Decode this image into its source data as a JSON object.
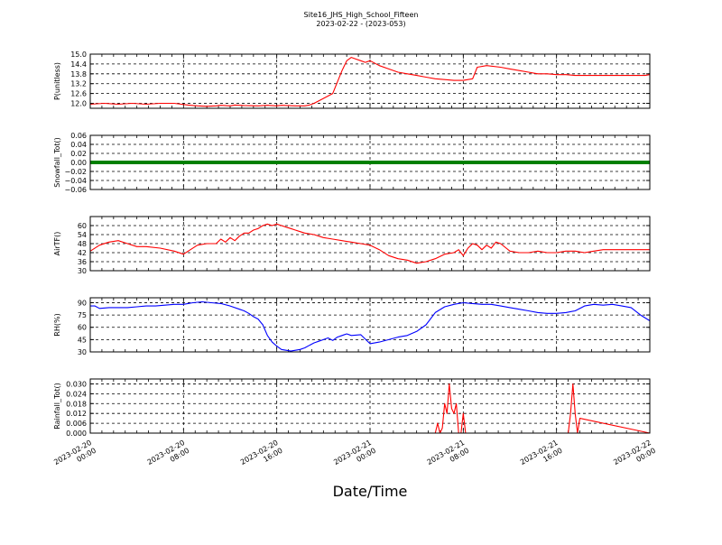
{
  "figure": {
    "title": "Site16_JHS_High_School_Fifteen",
    "subtitle": "2023-02-22 - (2023-053)",
    "xlabel": "Date/Time"
  },
  "chart_data": [
    {
      "type": "line",
      "ylabel": "P(unitless)",
      "ylim": [
        11.7,
        15.0
      ],
      "yticks": [
        "12.0",
        "12.6",
        "13.2",
        "13.8",
        "14.4",
        "15.0"
      ],
      "color": "#ff0000",
      "grid": true,
      "x": [
        0,
        6,
        12,
        18,
        24,
        30,
        33,
        36,
        42,
        46,
        50,
        54,
        56,
        60,
        62,
        66,
        72,
        76,
        80,
        82,
        88,
        92,
        94,
        96,
        100,
        104,
        106,
        108,
        110,
        112,
        114,
        116,
        118,
        120,
        124,
        128,
        132,
        136,
        140,
        144,
        148,
        152,
        156,
        160,
        164,
        166,
        170,
        176,
        180,
        184,
        188,
        190,
        192,
        196,
        200,
        204,
        208,
        212,
        216,
        220,
        226,
        232,
        238,
        240
      ],
      "y": [
        11.95,
        12.0,
        11.95,
        12.0,
        11.95,
        12.0,
        12.0,
        12.0,
        11.9,
        11.85,
        11.82,
        11.85,
        11.88,
        11.85,
        11.9,
        11.87,
        11.85,
        11.88,
        11.85,
        11.88,
        11.85,
        11.85,
        11.9,
        12.0,
        12.3,
        12.6,
        13.3,
        14.0,
        14.6,
        14.8,
        14.7,
        14.6,
        14.5,
        14.6,
        14.3,
        14.1,
        13.9,
        13.8,
        13.7,
        13.6,
        13.5,
        13.45,
        13.4,
        13.4,
        13.5,
        14.2,
        14.3,
        14.2,
        14.1,
        14.0,
        13.9,
        13.85,
        13.8,
        13.8,
        13.75,
        13.75,
        13.7,
        13.7,
        13.7,
        13.7,
        13.7,
        13.7,
        13.7,
        13.75
      ]
    },
    {
      "type": "line",
      "ylabel": "Snowfall_Tot()",
      "ylim": [
        -0.06,
        0.06
      ],
      "yticks": [
        "−0.06",
        "−0.04",
        "−0.02",
        "0.00",
        "0.02",
        "0.04",
        "0.06"
      ],
      "color": "#008000",
      "grid": true,
      "x": [
        0,
        240
      ],
      "y": [
        0,
        0
      ]
    },
    {
      "type": "line",
      "ylabel": "AirTF()",
      "ylim": [
        30,
        66
      ],
      "yticks": [
        "30",
        "36",
        "42",
        "48",
        "54",
        "60"
      ],
      "color": "#ff0000",
      "grid": true,
      "x": [
        0,
        4,
        8,
        12,
        16,
        20,
        24,
        30,
        36,
        40,
        42,
        46,
        50,
        54,
        56,
        58,
        60,
        62,
        64,
        66,
        68,
        70,
        72,
        74,
        76,
        78,
        80,
        82,
        84,
        86,
        88,
        90,
        92,
        96,
        100,
        104,
        108,
        112,
        116,
        120,
        124,
        128,
        132,
        136,
        140,
        144,
        148,
        152,
        156,
        158,
        160,
        162,
        164,
        166,
        168,
        170,
        172,
        174,
        176,
        180,
        184,
        188,
        192,
        196,
        200,
        204,
        208,
        212,
        216,
        220,
        224,
        228,
        232,
        236,
        240
      ],
      "y": [
        43,
        47,
        49,
        50,
        48,
        46,
        46,
        45,
        43,
        41,
        43,
        47,
        48,
        48,
        51,
        49,
        52,
        50,
        53,
        55,
        55,
        57,
        58,
        60,
        61,
        60,
        61,
        60,
        59,
        58,
        57,
        56,
        55,
        54,
        52,
        51,
        50,
        49,
        48,
        47,
        44,
        40,
        38,
        37,
        35,
        36,
        38,
        41,
        42,
        44,
        40,
        45,
        48,
        47,
        44,
        47,
        45,
        49,
        48,
        43,
        42,
        42,
        43,
        42,
        42,
        43,
        43,
        42,
        43,
        44,
        44,
        44,
        44,
        44,
        44
      ]
    },
    {
      "type": "line",
      "ylabel": "RH(%)",
      "ylim": [
        30,
        96
      ],
      "yticks": [
        "30",
        "45",
        "60",
        "75",
        "90"
      ],
      "color": "#0000ff",
      "grid": true,
      "x": [
        0,
        2,
        4,
        8,
        12,
        16,
        20,
        24,
        28,
        32,
        36,
        40,
        44,
        48,
        52,
        56,
        60,
        64,
        66,
        68,
        70,
        72,
        74,
        76,
        78,
        80,
        82,
        84,
        86,
        88,
        90,
        92,
        94,
        96,
        98,
        100,
        102,
        104,
        106,
        108,
        110,
        112,
        116,
        120,
        124,
        128,
        132,
        136,
        140,
        144,
        148,
        152,
        156,
        160,
        164,
        168,
        172,
        176,
        180,
        184,
        188,
        192,
        196,
        200,
        204,
        208,
        212,
        216,
        220,
        224,
        228,
        232,
        236,
        240
      ],
      "y": [
        86,
        86,
        83,
        84,
        84,
        84,
        85,
        86,
        86,
        87,
        88,
        88,
        90,
        91,
        90,
        89,
        86,
        82,
        80,
        77,
        73,
        70,
        63,
        50,
        42,
        37,
        33,
        32,
        31,
        32,
        33,
        35,
        38,
        41,
        43,
        45,
        47,
        44,
        48,
        50,
        52,
        50,
        51,
        40,
        42,
        45,
        48,
        50,
        55,
        63,
        78,
        85,
        88,
        90,
        89,
        88,
        88,
        86,
        84,
        82,
        80,
        78,
        77,
        77,
        78,
        80,
        86,
        88,
        87,
        88,
        86,
        84,
        75,
        68
      ]
    },
    {
      "type": "line",
      "ylabel": "Rainfall_Tot()",
      "ylim": [
        0,
        0.033
      ],
      "yticks": [
        "0.000",
        "0.006",
        "0.012",
        "0.018",
        "0.024",
        "0.030"
      ],
      "color": "#ff0000",
      "grid": true,
      "x": [
        0,
        148,
        149,
        150,
        151,
        152,
        153,
        154,
        155,
        156,
        157,
        158,
        159,
        160,
        161,
        162,
        163,
        164,
        205,
        206,
        207,
        208,
        209,
        210,
        240
      ],
      "y": [
        0,
        0,
        0.006,
        0,
        0.003,
        0.018,
        0.012,
        0.03,
        0.015,
        0.012,
        0.018,
        0,
        0,
        0.012,
        0,
        0,
        0,
        0,
        0,
        0.012,
        0.03,
        0.012,
        0,
        0.009,
        0
      ]
    }
  ],
  "xaxis": {
    "range_hours": [
      0,
      48
    ],
    "ticks": [
      {
        "line1": "2023-02-20",
        "line2": "00:00"
      },
      {
        "line1": "2023-02-20",
        "line2": "08:00"
      },
      {
        "line1": "2023-02-20",
        "line2": "16:00"
      },
      {
        "line1": "2023-02-21",
        "line2": "00:00"
      },
      {
        "line1": "2023-02-21",
        "line2": "08:00"
      },
      {
        "line1": "2023-02-21",
        "line2": "16:00"
      },
      {
        "line1": "2023-02-22",
        "line2": "00:00"
      }
    ]
  }
}
